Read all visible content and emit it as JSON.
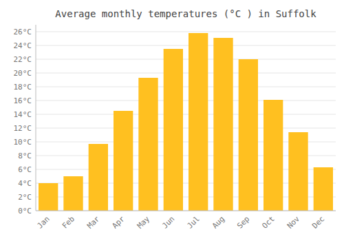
{
  "chart_data": {
    "type": "bar",
    "title": "Average monthly temperatures (°C ) in Suffolk",
    "categories": [
      "Jan",
      "Feb",
      "Mar",
      "Apr",
      "May",
      "Jun",
      "Jul",
      "Aug",
      "Sep",
      "Oct",
      "Nov",
      "Dec"
    ],
    "values": [
      4.0,
      5.0,
      9.7,
      14.5,
      19.3,
      23.5,
      25.8,
      25.1,
      22.0,
      16.1,
      11.4,
      6.3
    ],
    "color": "#FFC020",
    "ylim": [
      0,
      27
    ],
    "yticks": [
      {
        "value": 0,
        "label": "0°C"
      },
      {
        "value": 2,
        "label": "2°C"
      },
      {
        "value": 4,
        "label": "4°C"
      },
      {
        "value": 6,
        "label": "6°C"
      },
      {
        "value": 8,
        "label": "8°C"
      },
      {
        "value": 10,
        "label": "10°C"
      },
      {
        "value": 12,
        "label": "12°C"
      },
      {
        "value": 14,
        "label": "14°C"
      },
      {
        "value": 16,
        "label": "16°C"
      },
      {
        "value": 18,
        "label": "18°C"
      },
      {
        "value": 20,
        "label": "20°C"
      },
      {
        "value": 22,
        "label": "22°C"
      },
      {
        "value": 24,
        "label": "24°C"
      },
      {
        "value": 26,
        "label": "26°C"
      }
    ],
    "grid": true
  }
}
